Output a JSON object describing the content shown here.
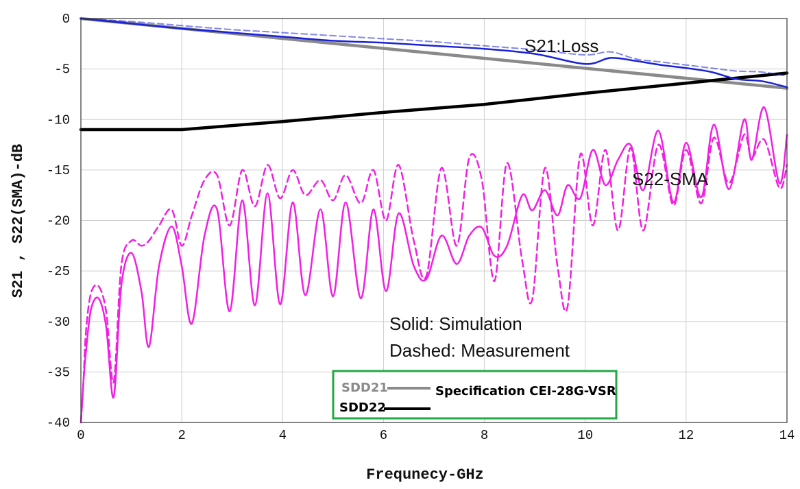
{
  "chart_data": {
    "type": "line",
    "xlabel": "Frequnecy-GHz",
    "ylabel": "S21 , S22(SMA)-dB",
    "xlim": [
      0,
      14
    ],
    "ylim": [
      -40,
      0
    ],
    "xticks": [
      0,
      2,
      4,
      6,
      8,
      10,
      12,
      14
    ],
    "yticks": [
      0,
      -5,
      -10,
      -15,
      -20,
      -25,
      -30,
      -35,
      -40
    ],
    "grid": true,
    "annotations": {
      "s21": "S21:Loss",
      "s22": "S22-SMA",
      "solid": "Solid: Simulation",
      "dashed": "Dashed: Measurement"
    },
    "legend": {
      "position": "bottom-center",
      "sdd21": "SDD21",
      "sdd22": "SDD22",
      "spec": "Specification CEI-28G-VSR",
      "border_color": "#22a845"
    },
    "colors": {
      "s21": "#1a22d8",
      "s22": "#f21fe3",
      "spec21": "#8a8a8a",
      "spec22": "#000000"
    },
    "series": [
      {
        "style": "spec-gray",
        "x": [
          0,
          14
        ],
        "y": [
          0,
          -6.9
        ]
      },
      {
        "style": "spec-black",
        "x": [
          0,
          2,
          4,
          6,
          8,
          10,
          12,
          14
        ],
        "y": [
          -11,
          -11,
          -10.2,
          -9.3,
          -8.5,
          -7.4,
          -6.4,
          -5.4
        ]
      },
      {
        "style": "s21-solid",
        "x": [
          0,
          1,
          2,
          3,
          4,
          5,
          6,
          7,
          8,
          9,
          10,
          10.5,
          11,
          11.5,
          12,
          12.5,
          13,
          13.5,
          14
        ],
        "y": [
          0,
          -0.5,
          -1.0,
          -1.4,
          -1.8,
          -2.2,
          -2.4,
          -2.7,
          -3.0,
          -3.5,
          -4.5,
          -3.9,
          -4.2,
          -4.6,
          -4.9,
          -5.3,
          -6.0,
          -6.2,
          -6.8
        ]
      },
      {
        "style": "s21-dashed",
        "x": [
          0,
          1,
          2,
          3,
          4,
          5,
          6,
          7,
          8,
          9,
          10,
          10.5,
          11,
          11.5,
          12,
          12.5,
          13,
          13.5,
          14
        ],
        "y": [
          0,
          -0.3,
          -0.7,
          -1.1,
          -1.4,
          -1.7,
          -2.0,
          -2.3,
          -2.7,
          -3.1,
          -3.6,
          -3.3,
          -4.0,
          -4.3,
          -4.6,
          -4.9,
          -5.2,
          -5.3,
          -5.7
        ]
      },
      {
        "style": "s22-solid",
        "x": [
          0,
          0.05,
          0.1,
          0.2,
          0.35,
          0.5,
          0.65,
          0.8,
          1.0,
          1.2,
          1.35,
          1.55,
          1.8,
          2.0,
          2.2,
          2.45,
          2.7,
          2.95,
          3.2,
          3.45,
          3.7,
          3.95,
          4.2,
          4.45,
          4.75,
          5.0,
          5.25,
          5.55,
          5.8,
          6.05,
          6.3,
          6.6,
          6.85,
          7.15,
          7.45,
          7.7,
          7.95,
          8.2,
          8.45,
          8.75,
          8.95,
          9.2,
          9.45,
          9.65,
          9.9,
          10.15,
          10.4,
          10.65,
          10.9,
          11.15,
          11.45,
          11.75,
          12.0,
          12.3,
          12.55,
          12.85,
          13.15,
          13.3,
          13.55,
          13.85,
          14.0
        ],
        "y": [
          -40,
          -36,
          -33,
          -28.8,
          -27.7,
          -30.5,
          -37.5,
          -26.5,
          -23.2,
          -27,
          -32.5,
          -24.5,
          -20.6,
          -24.5,
          -30.2,
          -21.5,
          -18.9,
          -29.0,
          -18.0,
          -28.4,
          -17.3,
          -28.3,
          -18.2,
          -27.4,
          -18.9,
          -27.5,
          -18.2,
          -27.7,
          -18.9,
          -27.0,
          -19.3,
          -24.5,
          -25.8,
          -21.5,
          -24.3,
          -21.5,
          -20.7,
          -23.5,
          -22.5,
          -17.5,
          -19.0,
          -17.0,
          -19.5,
          -16.5,
          -17.8,
          -13.0,
          -16.5,
          -14.0,
          -12.5,
          -17.0,
          -11.1,
          -18.2,
          -12.3,
          -17.7,
          -10.5,
          -16.9,
          -10.0,
          -14.0,
          -8.8,
          -16.3,
          -11.5
        ]
      },
      {
        "style": "s22-dashed",
        "x": [
          0,
          0.05,
          0.1,
          0.2,
          0.35,
          0.5,
          0.65,
          0.8,
          1.0,
          1.2,
          1.35,
          1.55,
          1.8,
          2.0,
          2.2,
          2.45,
          2.7,
          2.95,
          3.2,
          3.45,
          3.7,
          3.95,
          4.2,
          4.45,
          4.75,
          5.0,
          5.25,
          5.55,
          5.8,
          6.05,
          6.3,
          6.6,
          6.85,
          7.15,
          7.45,
          7.7,
          7.95,
          8.2,
          8.45,
          8.75,
          8.95,
          9.2,
          9.45,
          9.65,
          9.9,
          10.15,
          10.4,
          10.65,
          10.9,
          11.15,
          11.45,
          11.75,
          12.0,
          12.3,
          12.55,
          12.85,
          13.15,
          13.3,
          13.55,
          13.85,
          14.0
        ],
        "y": [
          -40,
          -36,
          -31,
          -27.2,
          -26.5,
          -29.0,
          -36.0,
          -24.5,
          -22.0,
          -22.5,
          -22.0,
          -20.5,
          -18.9,
          -22.5,
          -19.5,
          -16.0,
          -15.5,
          -20.5,
          -15.0,
          -18.6,
          -14.5,
          -17.8,
          -15.0,
          -17.5,
          -16.0,
          -18.0,
          -15.5,
          -18.3,
          -15.0,
          -20.0,
          -14.5,
          -22.0,
          -25.5,
          -14.8,
          -22.5,
          -13.8,
          -16.0,
          -26.0,
          -14.3,
          -24.0,
          -27.8,
          -14.8,
          -24.5,
          -28.5,
          -13.5,
          -20.5,
          -13.0,
          -21.0,
          -12.8,
          -21.0,
          -12.5,
          -18.5,
          -13.0,
          -18.3,
          -11.8,
          -16.3,
          -11.5,
          -13.8,
          -12.0,
          -16.8,
          -14.5
        ]
      }
    ]
  }
}
